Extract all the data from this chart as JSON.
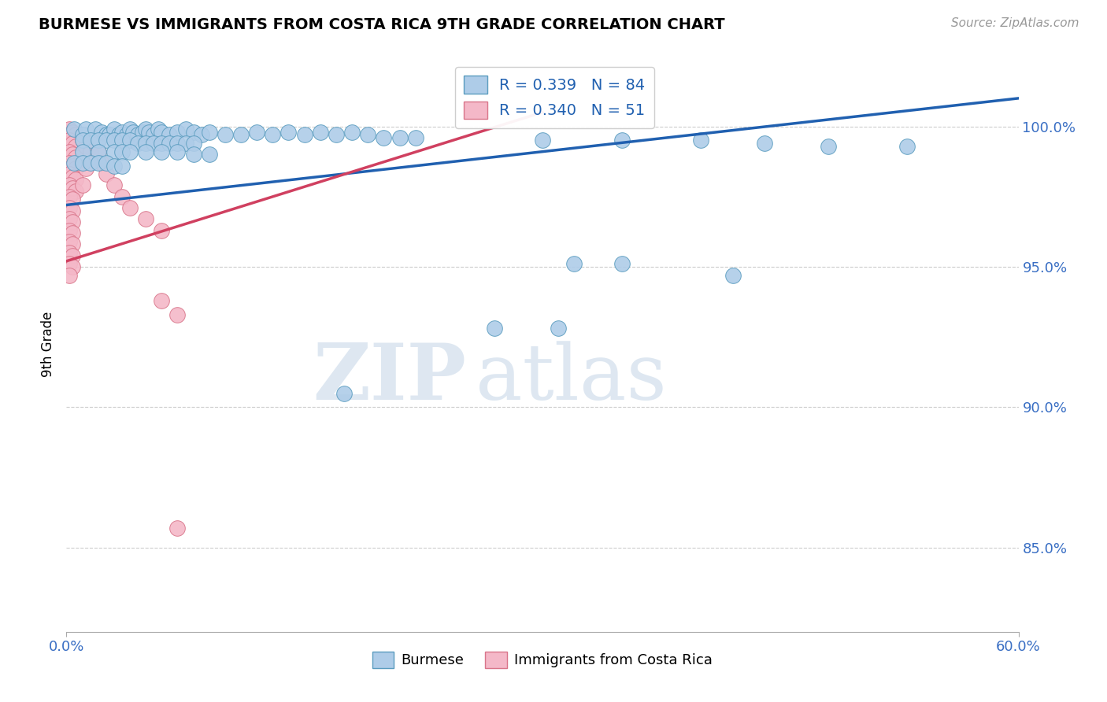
{
  "title": "BURMESE VS IMMIGRANTS FROM COSTA RICA 9TH GRADE CORRELATION CHART",
  "source": "Source: ZipAtlas.com",
  "ylabel": "9th Grade",
  "xlim": [
    0.0,
    0.6
  ],
  "ylim": [
    0.82,
    1.025
  ],
  "right_yticks": [
    0.85,
    0.9,
    0.95,
    1.0
  ],
  "right_yticklabels": [
    "85.0%",
    "90.0%",
    "95.0%",
    "100.0%"
  ],
  "burmese_color": "#aecce8",
  "burmese_edge": "#5a9cbf",
  "costa_rica_color": "#f4b8c8",
  "costa_rica_edge": "#d9758a",
  "trend_blue": "#2060b0",
  "trend_pink": "#d04060",
  "R_burmese": 0.339,
  "N_burmese": 84,
  "R_costa_rica": 0.34,
  "N_costa_rica": 51,
  "watermark_zip": "ZIP",
  "watermark_atlas": "atlas",
  "legend_label_blue": "Burmese",
  "legend_label_pink": "Immigrants from Costa Rica",
  "blue_trend_y0": 0.972,
  "blue_trend_y1": 1.01,
  "pink_trend_y0": 0.952,
  "pink_trend_y1": 1.005,
  "burmese_scatter": [
    [
      0.005,
      0.999
    ],
    [
      0.01,
      0.997
    ],
    [
      0.012,
      0.999
    ],
    [
      0.018,
      0.999
    ],
    [
      0.022,
      0.998
    ],
    [
      0.025,
      0.997
    ],
    [
      0.027,
      0.997
    ],
    [
      0.03,
      0.999
    ],
    [
      0.033,
      0.997
    ],
    [
      0.035,
      0.998
    ],
    [
      0.038,
      0.997
    ],
    [
      0.04,
      0.999
    ],
    [
      0.042,
      0.998
    ],
    [
      0.045,
      0.997
    ],
    [
      0.048,
      0.998
    ],
    [
      0.05,
      0.999
    ],
    [
      0.052,
      0.998
    ],
    [
      0.055,
      0.997
    ],
    [
      0.058,
      0.999
    ],
    [
      0.06,
      0.998
    ],
    [
      0.065,
      0.997
    ],
    [
      0.07,
      0.998
    ],
    [
      0.075,
      0.999
    ],
    [
      0.08,
      0.998
    ],
    [
      0.085,
      0.997
    ],
    [
      0.09,
      0.998
    ],
    [
      0.01,
      0.995
    ],
    [
      0.015,
      0.995
    ],
    [
      0.02,
      0.995
    ],
    [
      0.025,
      0.995
    ],
    [
      0.03,
      0.995
    ],
    [
      0.035,
      0.995
    ],
    [
      0.04,
      0.995
    ],
    [
      0.045,
      0.994
    ],
    [
      0.05,
      0.994
    ],
    [
      0.055,
      0.994
    ],
    [
      0.06,
      0.994
    ],
    [
      0.065,
      0.994
    ],
    [
      0.07,
      0.994
    ],
    [
      0.075,
      0.994
    ],
    [
      0.08,
      0.994
    ],
    [
      0.01,
      0.991
    ],
    [
      0.02,
      0.991
    ],
    [
      0.03,
      0.991
    ],
    [
      0.035,
      0.991
    ],
    [
      0.04,
      0.991
    ],
    [
      0.05,
      0.991
    ],
    [
      0.06,
      0.991
    ],
    [
      0.07,
      0.991
    ],
    [
      0.08,
      0.99
    ],
    [
      0.09,
      0.99
    ],
    [
      0.005,
      0.987
    ],
    [
      0.01,
      0.987
    ],
    [
      0.015,
      0.987
    ],
    [
      0.02,
      0.987
    ],
    [
      0.025,
      0.987
    ],
    [
      0.03,
      0.986
    ],
    [
      0.035,
      0.986
    ],
    [
      0.1,
      0.997
    ],
    [
      0.11,
      0.997
    ],
    [
      0.12,
      0.998
    ],
    [
      0.13,
      0.997
    ],
    [
      0.14,
      0.998
    ],
    [
      0.15,
      0.997
    ],
    [
      0.16,
      0.998
    ],
    [
      0.17,
      0.997
    ],
    [
      0.18,
      0.998
    ],
    [
      0.19,
      0.997
    ],
    [
      0.2,
      0.996
    ],
    [
      0.21,
      0.996
    ],
    [
      0.22,
      0.996
    ],
    [
      0.3,
      0.995
    ],
    [
      0.35,
      0.995
    ],
    [
      0.4,
      0.995
    ],
    [
      0.44,
      0.994
    ],
    [
      0.48,
      0.993
    ],
    [
      0.53,
      0.993
    ],
    [
      0.32,
      0.951
    ],
    [
      0.35,
      0.951
    ],
    [
      0.42,
      0.947
    ],
    [
      0.27,
      0.928
    ],
    [
      0.31,
      0.928
    ],
    [
      0.175,
      0.905
    ]
  ],
  "costa_rica_scatter": [
    [
      0.002,
      0.999
    ],
    [
      0.004,
      0.998
    ],
    [
      0.006,
      0.997
    ],
    [
      0.002,
      0.995
    ],
    [
      0.004,
      0.994
    ],
    [
      0.006,
      0.993
    ],
    [
      0.002,
      0.991
    ],
    [
      0.004,
      0.99
    ],
    [
      0.006,
      0.989
    ],
    [
      0.002,
      0.987
    ],
    [
      0.004,
      0.986
    ],
    [
      0.006,
      0.985
    ],
    [
      0.002,
      0.983
    ],
    [
      0.004,
      0.982
    ],
    [
      0.006,
      0.981
    ],
    [
      0.002,
      0.979
    ],
    [
      0.004,
      0.978
    ],
    [
      0.006,
      0.977
    ],
    [
      0.002,
      0.975
    ],
    [
      0.004,
      0.974
    ],
    [
      0.002,
      0.971
    ],
    [
      0.004,
      0.97
    ],
    [
      0.002,
      0.967
    ],
    [
      0.004,
      0.966
    ],
    [
      0.002,
      0.963
    ],
    [
      0.004,
      0.962
    ],
    [
      0.002,
      0.959
    ],
    [
      0.004,
      0.958
    ],
    [
      0.002,
      0.955
    ],
    [
      0.004,
      0.954
    ],
    [
      0.002,
      0.951
    ],
    [
      0.004,
      0.95
    ],
    [
      0.002,
      0.947
    ],
    [
      0.01,
      0.995
    ],
    [
      0.012,
      0.993
    ],
    [
      0.015,
      0.991
    ],
    [
      0.01,
      0.987
    ],
    [
      0.012,
      0.985
    ],
    [
      0.01,
      0.979
    ],
    [
      0.02,
      0.991
    ],
    [
      0.022,
      0.987
    ],
    [
      0.025,
      0.983
    ],
    [
      0.03,
      0.979
    ],
    [
      0.035,
      0.975
    ],
    [
      0.04,
      0.971
    ],
    [
      0.05,
      0.967
    ],
    [
      0.06,
      0.963
    ],
    [
      0.06,
      0.938
    ],
    [
      0.07,
      0.933
    ],
    [
      0.07,
      0.857
    ]
  ]
}
